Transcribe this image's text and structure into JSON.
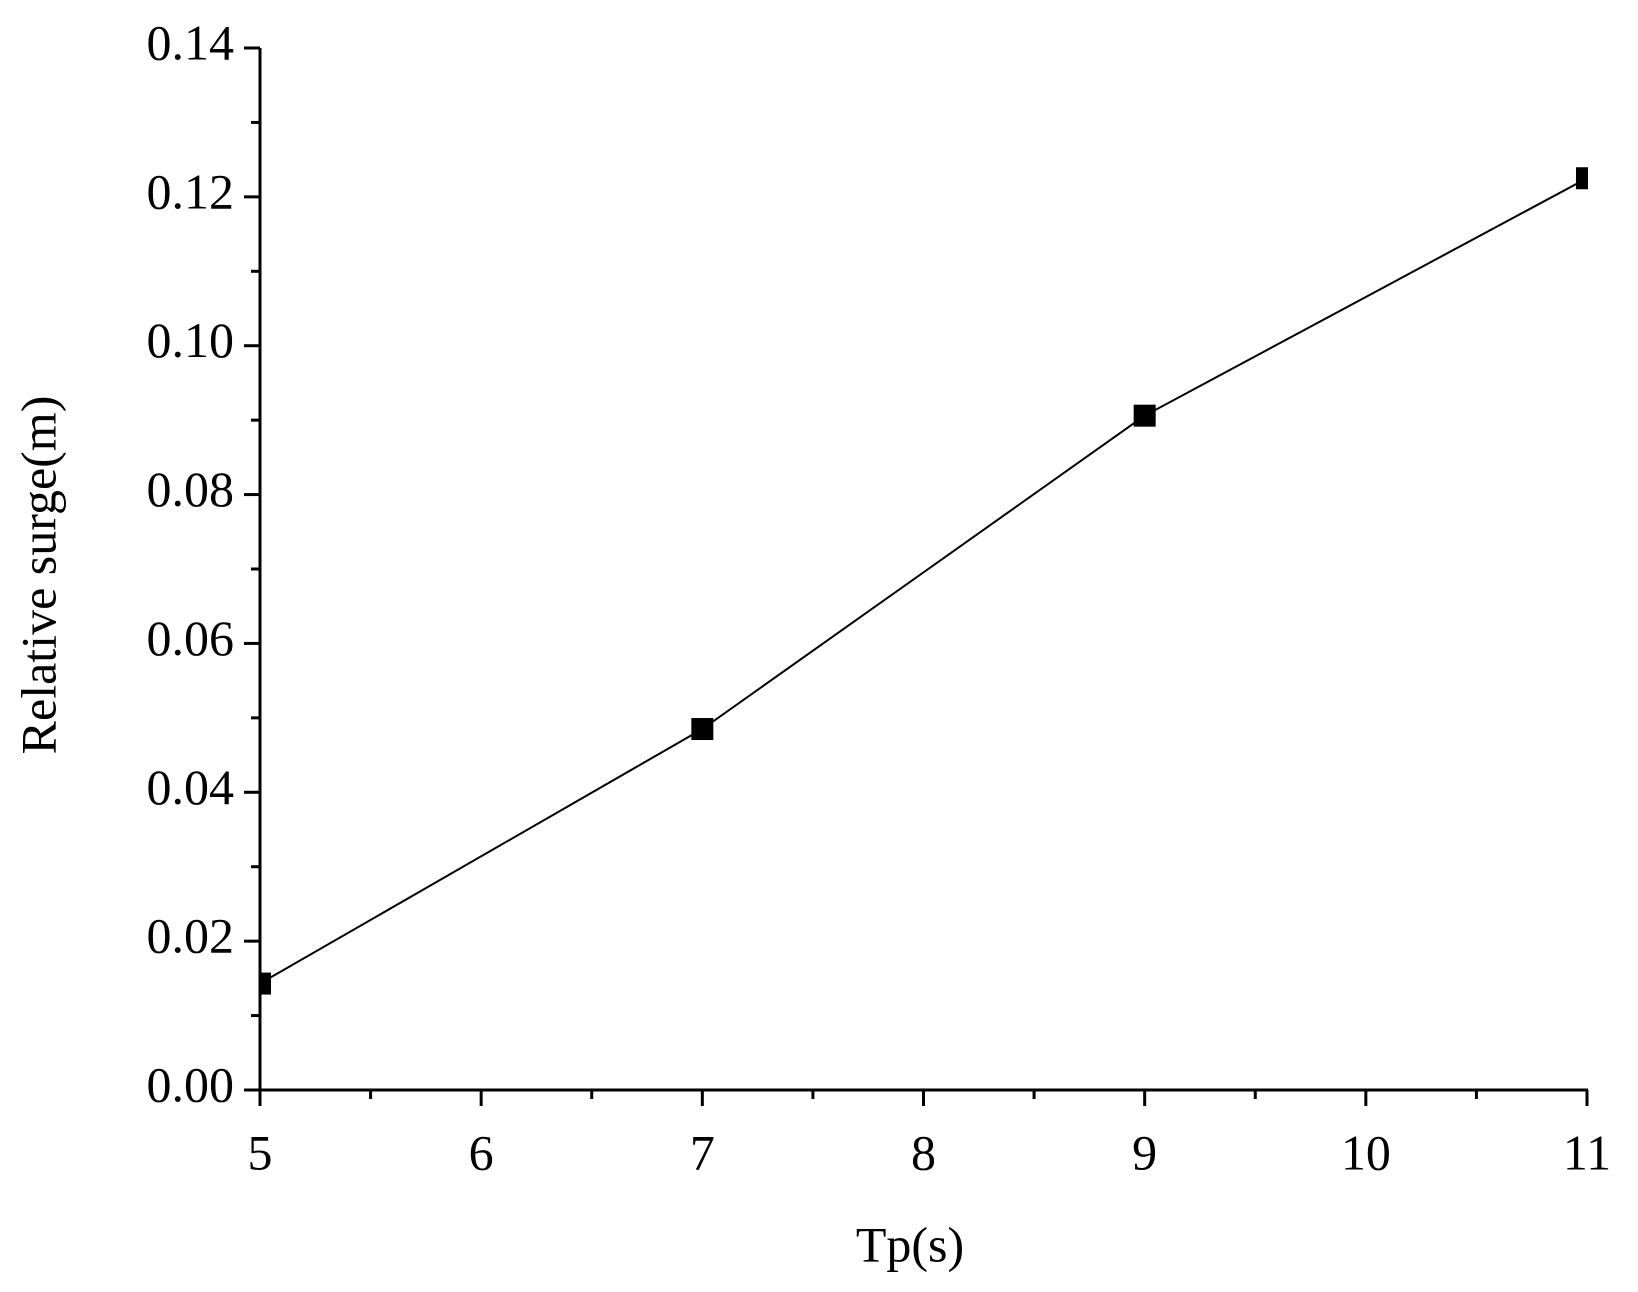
{
  "chart_data": {
    "type": "line",
    "x_label": "Tp(s)",
    "y_label": "Relative surge(m)",
    "x": [
      5,
      7,
      9,
      11
    ],
    "series": [
      {
        "name": "Relative surge",
        "color": "#000000",
        "values": [
          0.0143,
          0.0485,
          0.0906,
          0.1225
        ]
      }
    ],
    "xlim": [
      5,
      11
    ],
    "xticks": [
      5,
      6,
      7,
      8,
      9,
      10,
      11
    ],
    "ylim": [
      0,
      0.14
    ],
    "yticks": [
      {
        "value": 0,
        "label": "0.00"
      },
      {
        "value": 0.02,
        "label": "0.02"
      },
      {
        "value": 0.04,
        "label": "0.04"
      },
      {
        "value": 0.06,
        "label": "0.06"
      },
      {
        "value": 0.08,
        "label": "0.08"
      },
      {
        "value": 0.1,
        "label": "0.10"
      },
      {
        "value": 0.12,
        "label": "0.12"
      },
      {
        "value": 0.14,
        "label": "0.14"
      }
    ],
    "grid": false
  }
}
